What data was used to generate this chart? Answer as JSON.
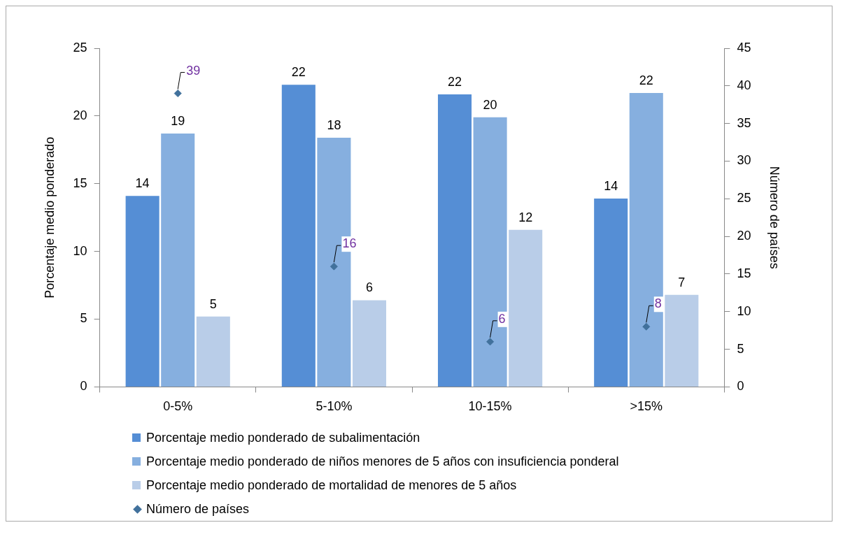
{
  "chart_data": {
    "type": "bar",
    "categories": [
      "0-5%",
      "5-10%",
      "10-15%",
      ">15%"
    ],
    "ylabel": "Porcentaje medio ponderado",
    "y2label": "Número de países",
    "ylim": [
      0,
      25
    ],
    "yticks": [
      0,
      5,
      10,
      15,
      20,
      25
    ],
    "y2lim": [
      0,
      45
    ],
    "y2ticks": [
      0,
      5,
      10,
      15,
      20,
      25,
      30,
      35,
      40,
      45
    ],
    "grid": false,
    "legend": "bottom",
    "series": [
      {
        "name": "Porcentaje medio ponderado de subalimentación",
        "color": "#558ed5",
        "values": [
          14.1,
          22.3,
          21.6,
          13.9
        ],
        "value_labels": [
          "14",
          "22",
          "22",
          "14"
        ]
      },
      {
        "name": "Porcentaje medio ponderado de niños menores de 5 años con insuficiencia ponderal",
        "color": "#86afdf",
        "values": [
          18.7,
          18.4,
          19.9,
          21.7
        ],
        "value_labels": [
          "19",
          "18",
          "20",
          "22"
        ]
      },
      {
        "name": "Porcentaje medio ponderado de mortalidad de menores de 5 años",
        "color": "#b9cde8",
        "values": [
          5.2,
          6.4,
          11.6,
          6.8
        ],
        "value_labels": [
          "5",
          "6",
          "12",
          "7"
        ]
      },
      {
        "name": "Número de países",
        "type": "scatter",
        "axis": "y2",
        "marker": "diamond",
        "color": "#41719c",
        "x": [
          "0-5%",
          "5-10%",
          "10-15%",
          ">15%"
        ],
        "values": [
          39,
          16,
          6,
          8
        ],
        "value_labels": [
          "39",
          "16",
          "6",
          "8"
        ]
      }
    ]
  }
}
